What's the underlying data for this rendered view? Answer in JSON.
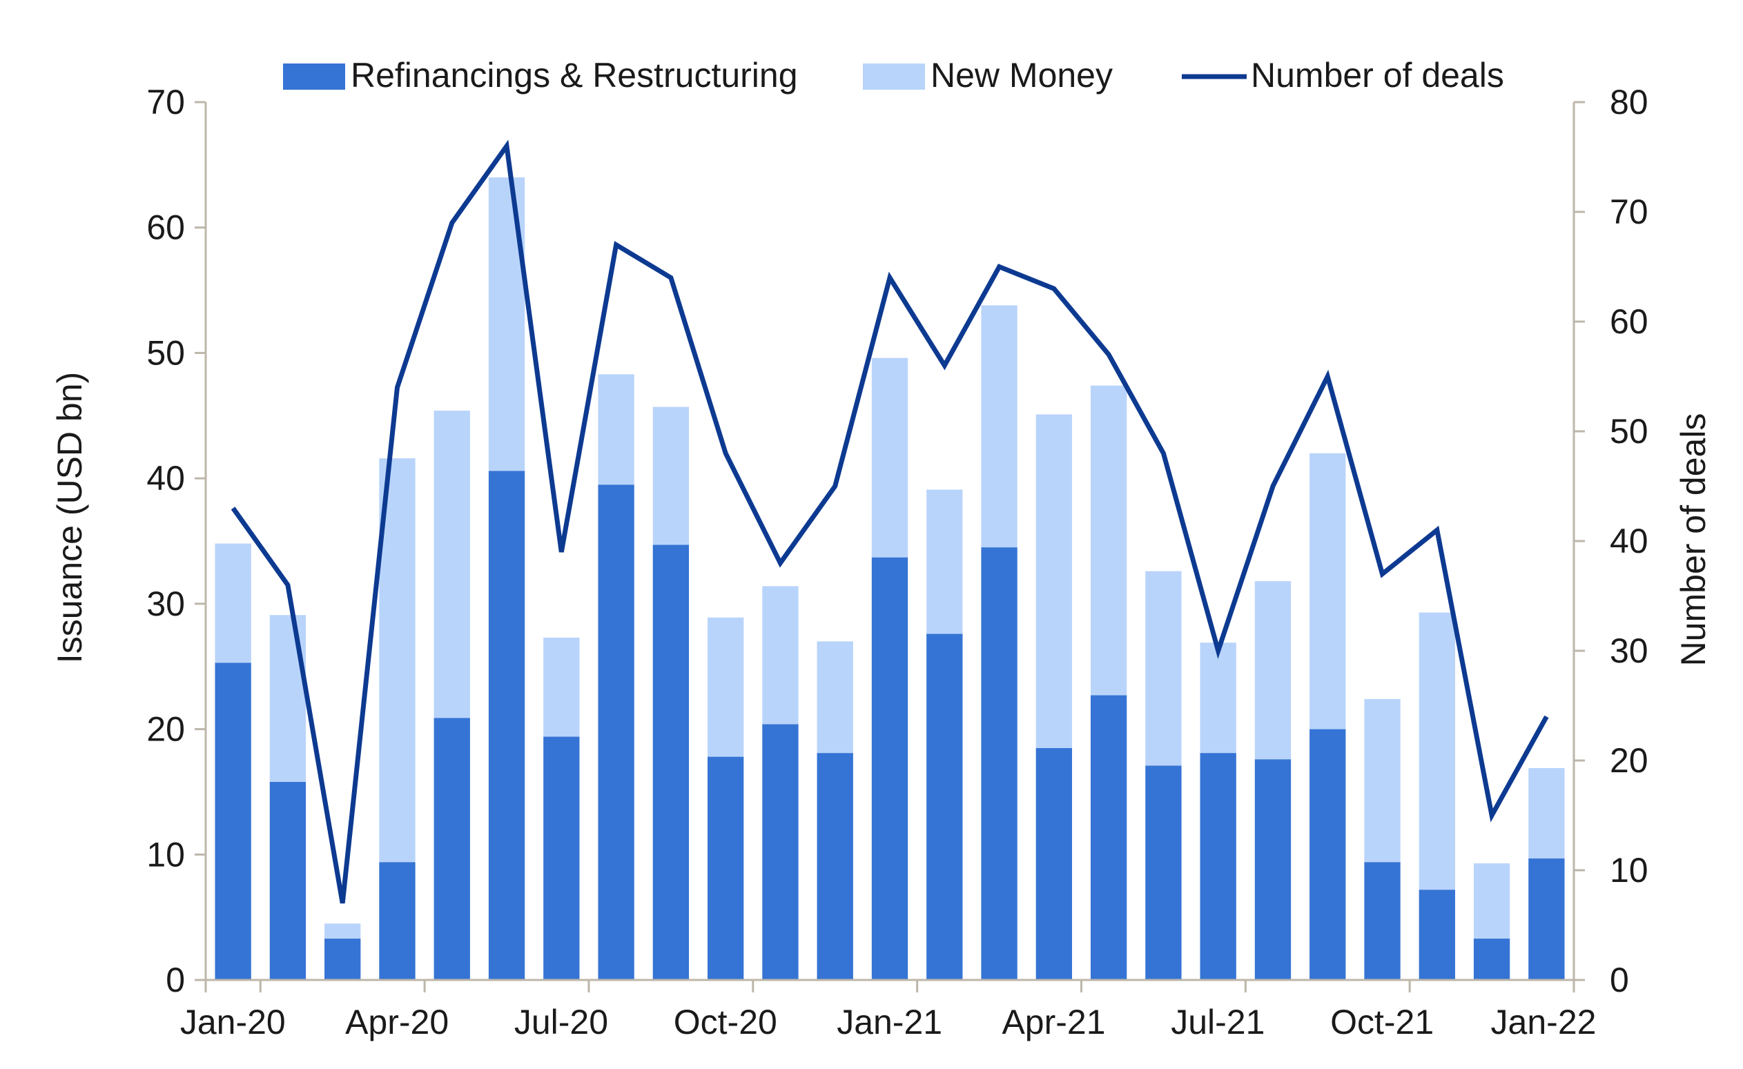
{
  "chart_data": {
    "type": "bar",
    "stacked": true,
    "title": "",
    "categories": [
      "Jan-20",
      "Feb-20",
      "Mar-20",
      "Apr-20",
      "May-20",
      "Jun-20",
      "Jul-20",
      "Aug-20",
      "Sep-20",
      "Oct-20",
      "Nov-20",
      "Dec-20",
      "Jan-21",
      "Feb-21",
      "Mar-21",
      "Apr-21",
      "May-21",
      "Jun-21",
      "Jul-21",
      "Aug-21",
      "Sep-21",
      "Oct-21",
      "Nov-21",
      "Dec-21",
      "Jan-22"
    ],
    "x_tick_labels": [
      "Jan-20",
      "Apr-20",
      "Jul-20",
      "Oct-20",
      "Jan-21",
      "Apr-21",
      "Jul-21",
      "Oct-21",
      "Jan-22"
    ],
    "series": [
      {
        "name": "Refinancings & Restructuring",
        "kind": "bar",
        "axis": "left",
        "color": "#3574d4",
        "values": [
          25.3,
          15.8,
          3.3,
          9.4,
          20.9,
          40.6,
          19.4,
          39.5,
          34.7,
          17.8,
          20.4,
          18.1,
          33.7,
          27.6,
          34.5,
          18.5,
          22.7,
          17.1,
          18.1,
          17.6,
          20.0,
          9.4,
          7.2,
          3.3,
          9.7
        ]
      },
      {
        "name": "New Money",
        "kind": "bar",
        "axis": "left",
        "color": "#b9d4fb",
        "values": [
          9.5,
          13.3,
          1.2,
          32.2,
          24.5,
          23.4,
          7.9,
          8.8,
          11.0,
          11.1,
          11.0,
          8.9,
          15.9,
          11.5,
          19.3,
          26.6,
          24.7,
          15.5,
          8.8,
          14.2,
          22.0,
          13.0,
          22.1,
          6.0,
          7.2
        ]
      },
      {
        "name": "Number of deals",
        "kind": "line",
        "axis": "right",
        "color": "#0d3a91",
        "values": [
          43,
          36,
          7,
          54,
          69,
          76,
          39,
          67,
          64,
          48,
          38,
          45,
          64,
          56,
          65,
          63,
          57,
          48,
          30,
          45,
          55,
          37,
          41,
          15,
          24
        ]
      }
    ],
    "ylabel": "Issuance (USD bn)",
    "y2label": "Number of deals",
    "ylim": [
      0,
      70
    ],
    "y2lim": [
      0,
      80
    ],
    "y_ticks": [
      0,
      10,
      20,
      30,
      40,
      50,
      60,
      70
    ],
    "y2_ticks": [
      0,
      10,
      20,
      30,
      40,
      50,
      60,
      70,
      80
    ],
    "legend_position": "top",
    "grid": false
  }
}
